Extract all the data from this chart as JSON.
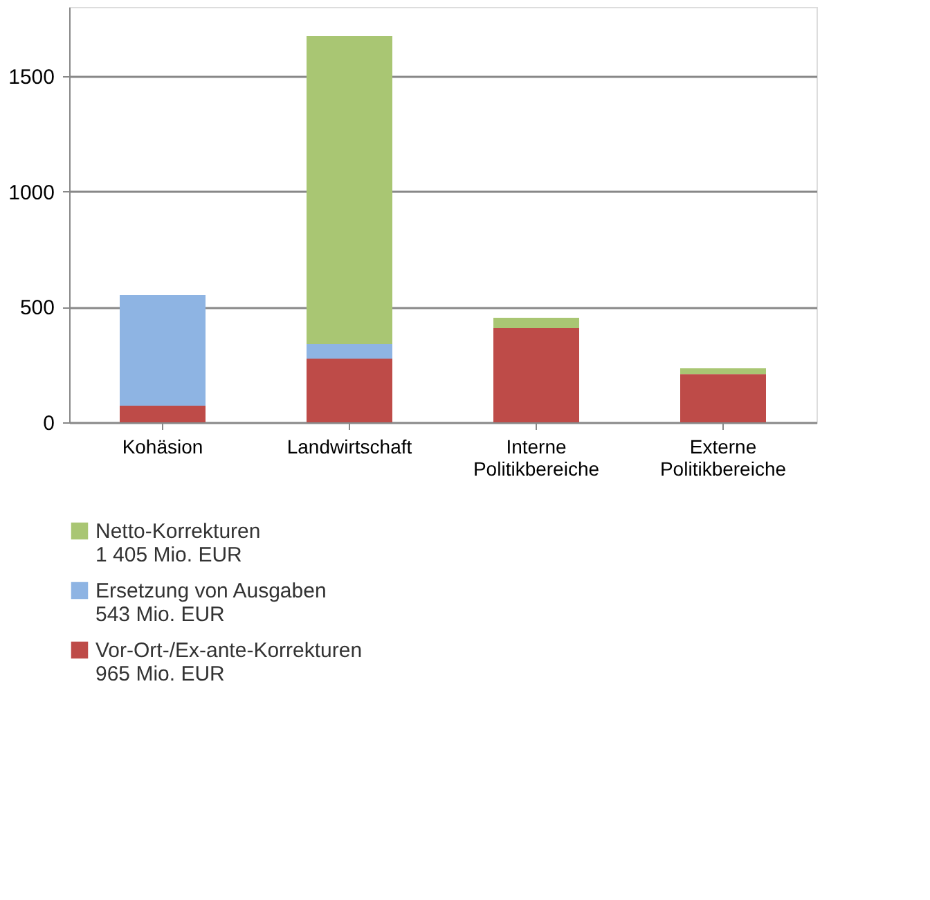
{
  "chart_data": {
    "type": "bar",
    "stacked": true,
    "categories": [
      "Kohäsion",
      "Landwirtschaft",
      "Interne Politikbereiche",
      "Externe Politikbereiche"
    ],
    "series": [
      {
        "name": "Vor-Ort-/Ex-ante-Korrekturen\n965 Mio. EUR",
        "color": "#be4b48",
        "values": [
          72,
          276,
          408,
          209
        ]
      },
      {
        "name": "Ersetzung von Ausgaben\n543 Mio. EUR",
        "color": "#8eb4e3",
        "values": [
          480,
          63,
          null,
          null
        ]
      },
      {
        "name": "Netto-Korrekturen\n1 405 Mio. EUR",
        "color": "#a9c673",
        "values": [
          null,
          1335,
          45,
          25
        ]
      }
    ],
    "ylim": [
      0,
      1800
    ],
    "yticks": [
      0,
      500,
      1000,
      1500
    ],
    "grid": "y",
    "legend": "bottom"
  }
}
